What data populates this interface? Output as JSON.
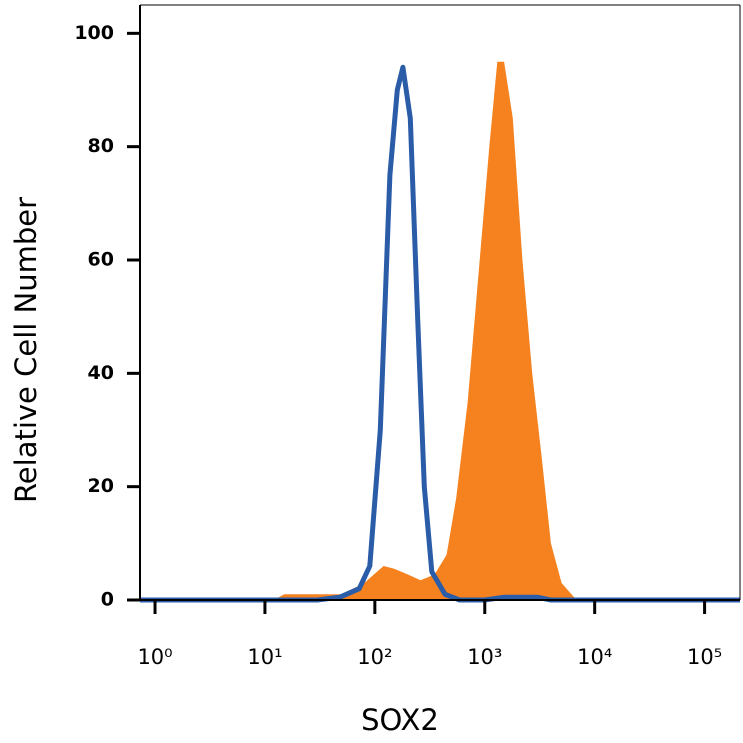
{
  "chart_data": {
    "type": "area",
    "x_label": "SOX2",
    "y_label": "Relative Cell Number",
    "xscale": "log",
    "xlim": [
      0.73,
      210000
    ],
    "ylim": [
      0,
      105
    ],
    "xticks": [
      {
        "value": 1,
        "label": "10⁰"
      },
      {
        "value": 10,
        "label": "10¹"
      },
      {
        "value": 100,
        "label": "10²"
      },
      {
        "value": 1000,
        "label": "10³"
      },
      {
        "value": 10000,
        "label": "10⁴"
      },
      {
        "value": 100000,
        "label": "10⁵"
      }
    ],
    "yticks": [
      0,
      20,
      40,
      60,
      80,
      100
    ],
    "series": [
      {
        "color": "#f5821f",
        "fill": true,
        "x": [
          0.73,
          12,
          15,
          50,
          80,
          120,
          150,
          200,
          260,
          350,
          450,
          550,
          700,
          900,
          1100,
          1300,
          1500,
          1800,
          2200,
          2700,
          3300,
          4000,
          5000,
          6500,
          8000,
          210000
        ],
        "values": [
          0,
          0,
          1,
          1,
          3,
          6,
          5.5,
          4.5,
          3.5,
          4.5,
          8,
          18,
          35,
          60,
          80,
          95,
          95,
          85,
          60,
          40,
          25,
          10,
          3,
          0.5,
          0,
          0
        ]
      },
      {
        "color": "#2a5ca8",
        "fill": false,
        "x": [
          0.73,
          30,
          48,
          72,
          90,
          112,
          137,
          160,
          180,
          210,
          245,
          282,
          330,
          435,
          590,
          1000,
          1500,
          2000,
          3000,
          4000,
          5000,
          210000
        ],
        "values": [
          0,
          0,
          0.5,
          2,
          6,
          30,
          75,
          90,
          94,
          85,
          50,
          20,
          5,
          1,
          0,
          0,
          0.5,
          0.5,
          0.5,
          0,
          0,
          0
        ]
      }
    ]
  }
}
